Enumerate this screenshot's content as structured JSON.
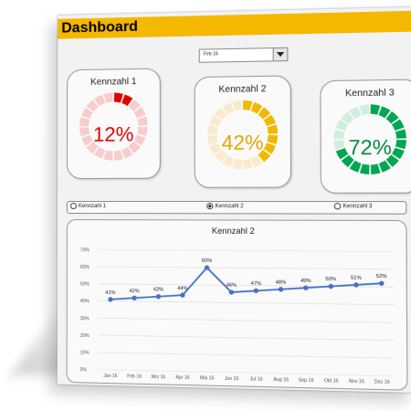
{
  "header": {
    "title": "Dashboard"
  },
  "month_select": {
    "value": "Feb 16"
  },
  "kpis": [
    {
      "title": "Kennzahl  1",
      "value_text": "12%",
      "value": 12,
      "color": "#e00000",
      "track": "#f6cccc"
    },
    {
      "title": "Kennzahl  2",
      "value_text": "42%",
      "value": 42,
      "color": "#f2b800",
      "track": "#f8eacb"
    },
    {
      "title": "Kennzahl  3",
      "value_text": "72%",
      "value": 72,
      "color": "#00a651",
      "track": "#cfeedd"
    }
  ],
  "radio": {
    "options": [
      "Kennzahl 1",
      "Kennzahl 2",
      "Kennzahl 3"
    ],
    "selected": "Kennzahl 2"
  },
  "chart_data": {
    "type": "line",
    "title": "Kennzahl  2",
    "categories": [
      "Jan 16",
      "Feb 16",
      "Mrz 16",
      "Apr 16",
      "Mai 16",
      "Jun 16",
      "Jul 16",
      "Aug 16",
      "Sep 16",
      "Okt 16",
      "Nov 16",
      "Dez 16"
    ],
    "values": [
      41,
      42,
      43,
      44,
      60,
      46,
      47,
      48,
      49,
      50,
      51,
      52
    ],
    "data_labels": [
      "41%",
      "42%",
      "43%",
      "44%",
      "60%",
      "46%",
      "47%",
      "48%",
      "49%",
      "50%",
      "51%",
      "52%"
    ],
    "y_ticks": [
      "0%",
      "10%",
      "20%",
      "30%",
      "40%",
      "50%",
      "60%",
      "70%"
    ],
    "ylim": [
      0,
      70
    ],
    "grid": true,
    "line_color": "#4472c4"
  }
}
